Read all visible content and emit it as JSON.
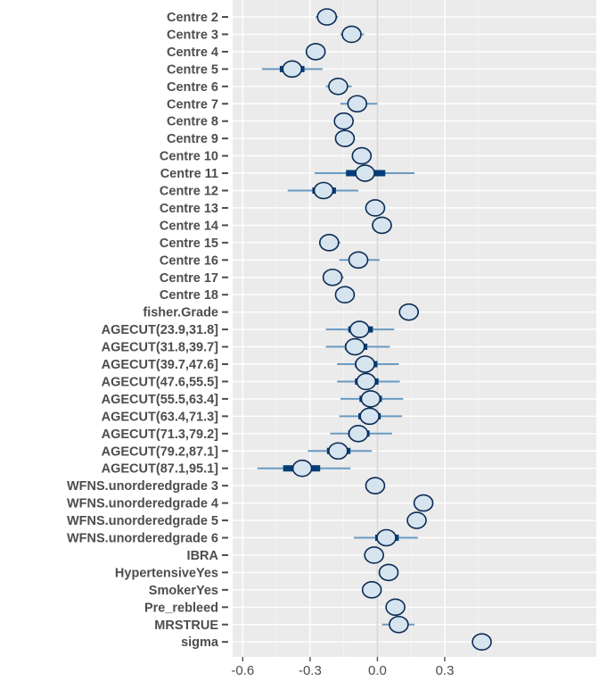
{
  "chart_data": {
    "type": "interval",
    "title": "",
    "xlabel": "",
    "ylabel": "",
    "xlim": [
      -0.645,
      0.975
    ],
    "xticks": [
      -0.6,
      -0.3,
      0.0,
      0.3
    ],
    "xtick_labels": [
      "-0.6",
      "-0.3",
      "0.0",
      "0.3"
    ],
    "zero_line": 0.0,
    "grid": true,
    "colors": {
      "panel_bg": "#ebebeb",
      "grid_major": "#ffffff",
      "grid_minor": "#f5f5f5",
      "zero_line": "#d9d9d9",
      "outer_interval": "#6a9bc3",
      "inner_interval": "#003e78",
      "point_fill": "#d6e4f0",
      "point_stroke": "#0b2c54",
      "axis_text": "#4d4d4d"
    },
    "parameters": [
      {
        "label": "Centre 2",
        "m": -0.225,
        "ll": -0.275,
        "l": -0.245,
        "h": -0.205,
        "hh": -0.175
      },
      {
        "label": "Centre 3",
        "m": -0.115,
        "ll": -0.165,
        "l": -0.135,
        "h": -0.095,
        "hh": -0.06
      },
      {
        "label": "Centre 4",
        "m": -0.275,
        "ll": -0.32,
        "l": -0.29,
        "h": -0.26,
        "hh": -0.23
      },
      {
        "label": "Centre 5",
        "m": -0.38,
        "ll": -0.515,
        "l": -0.435,
        "h": -0.325,
        "hh": -0.245
      },
      {
        "label": "Centre 6",
        "m": -0.175,
        "ll": -0.23,
        "l": -0.195,
        "h": -0.155,
        "hh": -0.115
      },
      {
        "label": "Centre 7",
        "m": -0.09,
        "ll": -0.165,
        "l": -0.115,
        "h": -0.06,
        "hh": 0.0
      },
      {
        "label": "Centre 8",
        "m": -0.15,
        "ll": -0.19,
        "l": -0.165,
        "h": -0.135,
        "hh": -0.105
      },
      {
        "label": "Centre 9",
        "m": -0.145,
        "ll": -0.185,
        "l": -0.16,
        "h": -0.13,
        "hh": -0.105
      },
      {
        "label": "Centre 10",
        "m": -0.07,
        "ll": -0.115,
        "l": -0.085,
        "h": -0.055,
        "hh": -0.025
      },
      {
        "label": "Centre 11",
        "m": -0.055,
        "ll": -0.28,
        "l": -0.14,
        "h": 0.035,
        "hh": 0.165
      },
      {
        "label": "Centre 12",
        "m": -0.24,
        "ll": -0.4,
        "l": -0.29,
        "h": -0.185,
        "hh": -0.085
      },
      {
        "label": "Centre 13",
        "m": -0.01,
        "ll": -0.05,
        "l": -0.025,
        "h": 0.005,
        "hh": 0.035
      },
      {
        "label": "Centre 14",
        "m": 0.02,
        "ll": -0.025,
        "l": 0.005,
        "h": 0.035,
        "hh": 0.065
      },
      {
        "label": "Centre 15",
        "m": -0.215,
        "ll": -0.26,
        "l": -0.23,
        "h": -0.2,
        "hh": -0.165
      },
      {
        "label": "Centre 16",
        "m": -0.085,
        "ll": -0.17,
        "l": -0.115,
        "h": -0.06,
        "hh": 0.01
      },
      {
        "label": "Centre 17",
        "m": -0.2,
        "ll": -0.24,
        "l": -0.215,
        "h": -0.185,
        "hh": -0.15
      },
      {
        "label": "Centre 18",
        "m": -0.145,
        "ll": -0.18,
        "l": -0.155,
        "h": -0.13,
        "hh": -0.1
      },
      {
        "label": "fisher.Grade",
        "m": 0.14,
        "ll": 0.14,
        "l": 0.14,
        "h": 0.14,
        "hh": 0.14
      },
      {
        "label": "AGECUT(23.9,31.8]",
        "m": -0.08,
        "ll": -0.23,
        "l": -0.13,
        "h": -0.02,
        "hh": 0.075
      },
      {
        "label": "AGECUT(31.8,39.7]",
        "m": -0.1,
        "ll": -0.23,
        "l": -0.145,
        "h": -0.045,
        "hh": 0.055
      },
      {
        "label": "AGECUT(39.7,47.6]",
        "m": -0.055,
        "ll": -0.18,
        "l": -0.1,
        "h": 0.0,
        "hh": 0.095
      },
      {
        "label": "AGECUT(47.6,55.5]",
        "m": -0.05,
        "ll": -0.18,
        "l": -0.1,
        "h": 0.005,
        "hh": 0.1
      },
      {
        "label": "AGECUT(55.5,63.4]",
        "m": -0.03,
        "ll": -0.165,
        "l": -0.08,
        "h": 0.02,
        "hh": 0.115
      },
      {
        "label": "AGECUT(63.4,71.3]",
        "m": -0.035,
        "ll": -0.17,
        "l": -0.085,
        "h": 0.015,
        "hh": 0.11
      },
      {
        "label": "AGECUT(71.3,79.2]",
        "m": -0.085,
        "ll": -0.21,
        "l": -0.13,
        "h": -0.035,
        "hh": 0.065
      },
      {
        "label": "AGECUT(79.2,87.1]",
        "m": -0.175,
        "ll": -0.31,
        "l": -0.225,
        "h": -0.12,
        "hh": -0.025
      },
      {
        "label": "AGECUT(87.1,95.1]",
        "m": -0.335,
        "ll": -0.535,
        "l": -0.42,
        "h": -0.255,
        "hh": -0.12
      },
      {
        "label": "WFNS.unorderedgrade 3",
        "m": -0.01,
        "ll": -0.01,
        "l": -0.01,
        "h": -0.01,
        "hh": -0.01
      },
      {
        "label": "WFNS.unorderedgrade 4",
        "m": 0.205,
        "ll": 0.205,
        "l": 0.205,
        "h": 0.205,
        "hh": 0.205
      },
      {
        "label": "WFNS.unorderedgrade 5",
        "m": 0.175,
        "ll": 0.175,
        "l": 0.175,
        "h": 0.175,
        "hh": 0.175
      },
      {
        "label": "WFNS.unorderedgrade 6",
        "m": 0.04,
        "ll": -0.105,
        "l": -0.01,
        "h": 0.095,
        "hh": 0.18
      },
      {
        "label": "IBRA",
        "m": -0.015,
        "ll": -0.015,
        "l": -0.015,
        "h": -0.015,
        "hh": -0.015
      },
      {
        "label": "HypertensiveYes",
        "m": 0.05,
        "ll": 0.05,
        "l": 0.05,
        "h": 0.05,
        "hh": 0.05
      },
      {
        "label": "SmokerYes",
        "m": -0.025,
        "ll": -0.025,
        "l": -0.025,
        "h": -0.025,
        "hh": -0.025
      },
      {
        "label": "Pre_rebleed",
        "m": 0.08,
        "ll": 0.04,
        "l": 0.065,
        "h": 0.095,
        "hh": 0.12
      },
      {
        "label": "MRSTRUE",
        "m": 0.095,
        "ll": 0.02,
        "l": 0.07,
        "h": 0.125,
        "hh": 0.165
      },
      {
        "label": "sigma",
        "m": 0.465,
        "ll": 0.465,
        "l": 0.465,
        "h": 0.465,
        "hh": 0.465
      }
    ]
  }
}
